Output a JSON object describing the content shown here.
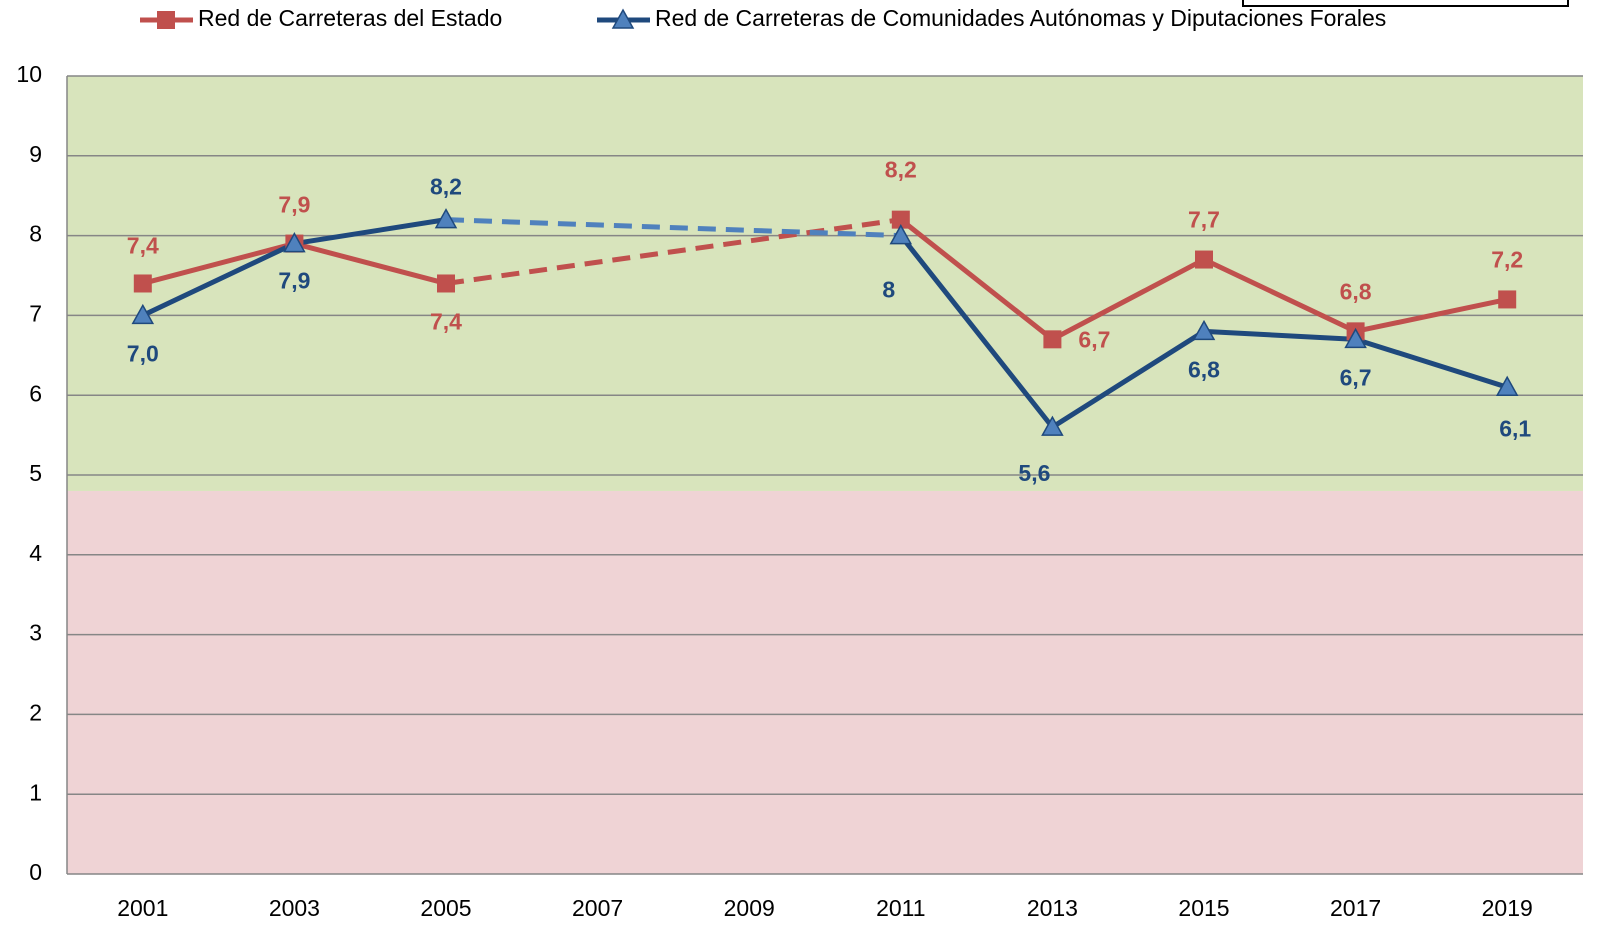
{
  "chart_data": {
    "type": "line",
    "categories": [
      "2001",
      "2003",
      "2005",
      "2007",
      "2009",
      "2011",
      "2013",
      "2015",
      "2017",
      "2019"
    ],
    "series": [
      {
        "name": "Red de Carreteras del Estado",
        "color": "#c0504d",
        "marker": "square",
        "values": [
          7.4,
          7.9,
          7.4,
          null,
          null,
          8.2,
          6.7,
          7.7,
          6.8,
          7.2
        ],
        "value_labels": [
          "7,4",
          "7,9",
          "7,4",
          null,
          null,
          "8,2",
          "6,7",
          "7,7",
          "6,8",
          "7,2"
        ]
      },
      {
        "name": "Red de Carreteras de Comunidades Autónomas y Diputaciones Forales",
        "color": "#1f497d",
        "marker_color": "#4f81bd",
        "marker": "triangle",
        "values": [
          7.0,
          7.9,
          8.2,
          null,
          null,
          8,
          5.6,
          6.8,
          6.7,
          6.1
        ],
        "value_labels": [
          "7,0",
          "7,9",
          "8,2",
          null,
          null,
          "8",
          "5,6",
          "6,8",
          "6,7",
          "6,1"
        ]
      }
    ],
    "gap_style": "dashed",
    "ylim": [
      0,
      10
    ],
    "yticks": [
      0,
      1,
      2,
      3,
      4,
      5,
      6,
      7,
      8,
      9,
      10
    ],
    "grid": true,
    "bands": [
      {
        "from": 0,
        "to": 4.8,
        "color": "#efd3d5"
      },
      {
        "from": 4.8,
        "to": 10,
        "color": "#d8e4bc"
      }
    ],
    "legend": "top"
  }
}
